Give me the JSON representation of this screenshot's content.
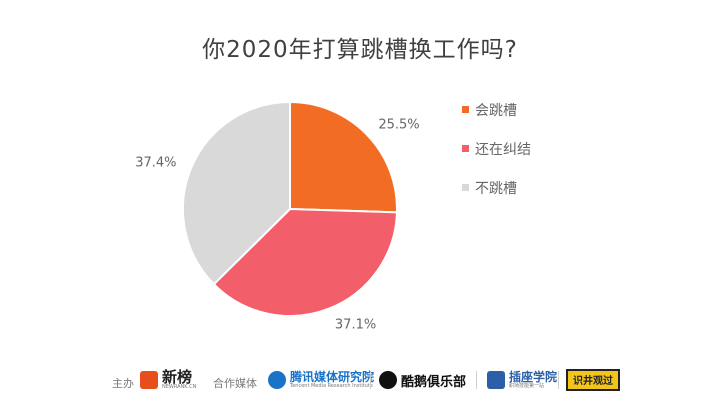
{
  "chart_data": {
    "type": "pie",
    "title": "你2020年打算跳槽换工作吗?",
    "slices": [
      {
        "label": "会跳槽",
        "value": 25.5,
        "value_label": "25.5%",
        "color": "#f26c23"
      },
      {
        "label": "还在纠结",
        "value": 37.1,
        "value_label": "37.1%",
        "color": "#f25e6a"
      },
      {
        "label": "不跳槽",
        "value": 37.4,
        "value_label": "37.4%",
        "color": "#d9d9d9"
      }
    ],
    "legend_position": "right",
    "start_angle": "12 o'clock",
    "direction": "clockwise"
  },
  "footer": {
    "host_label": "主办",
    "host_logo": {
      "name": "新榜",
      "sub": "NEWRANK.CN",
      "icon": "newrank-logo-icon",
      "color": "#e84e1b"
    },
    "media_label": "合作媒体",
    "media": [
      {
        "name": "腾讯媒体研究院",
        "sub": "Tencent Media Research Institute",
        "icon": "tencent-media-logo-icon",
        "color": "#1a73c9"
      },
      {
        "name": "酷鹅俱乐部",
        "icon": "penguin-club-logo-icon",
        "color": "#111111"
      },
      {
        "name": "插座学院",
        "sub": "职场技能第一站",
        "icon": "chazuo-logo-icon",
        "color": "#2b5fa8"
      },
      {
        "name": "识井观过",
        "icon": "badge-logo-icon",
        "color": "#f2c51b"
      }
    ]
  }
}
